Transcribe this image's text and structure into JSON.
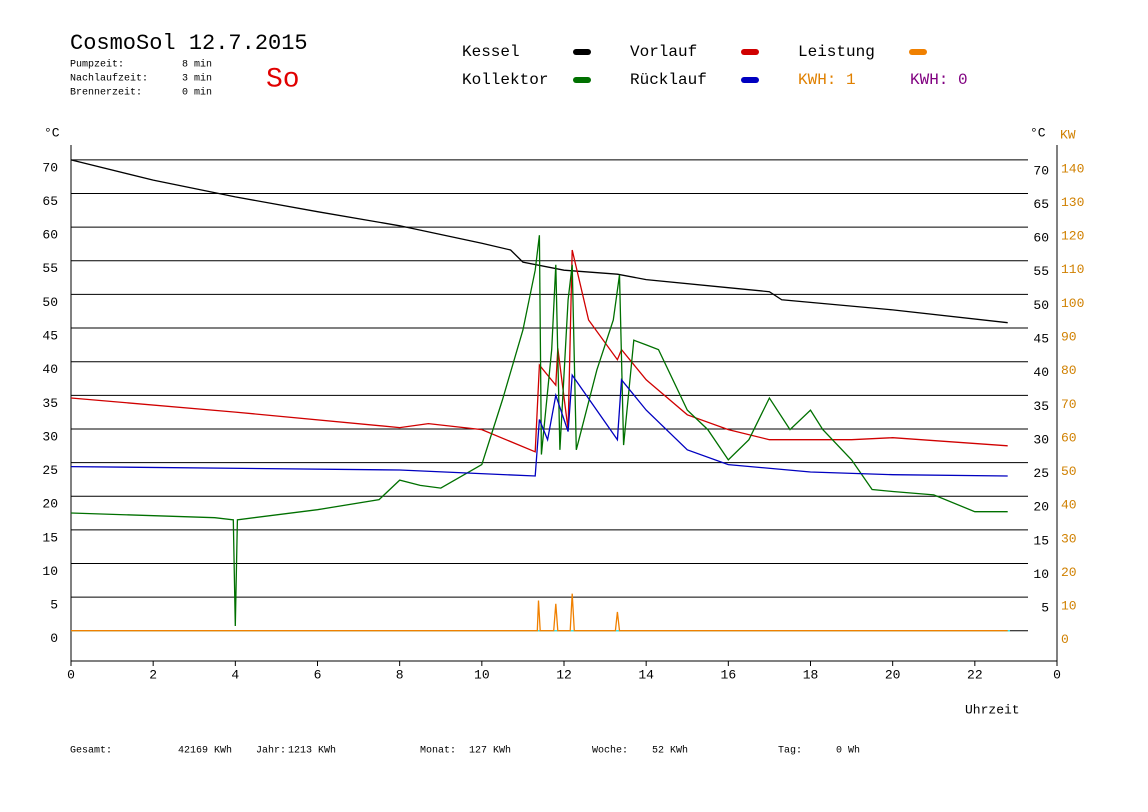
{
  "chart_data": {
    "type": "line",
    "title": "CosmoSol 12.7.2015",
    "day": "So",
    "info": [
      {
        "label": "Pumpzeit:",
        "value": "8 min"
      },
      {
        "label": "Nachlaufzeit:",
        "value": "3 min"
      },
      {
        "label": "Brennerzeit:",
        "value": "0 min"
      }
    ],
    "kwh": [
      {
        "label": "KWH: 1",
        "color": "#e08000"
      },
      {
        "label": "KWH: 0",
        "color": "#800080"
      }
    ],
    "y_label": "°C",
    "y2_label_c": "°C",
    "y2_label": "KW",
    "x_label": "Uhrzeit",
    "xlim": [
      0,
      24
    ],
    "xticks": [
      0,
      2,
      4,
      6,
      8,
      10,
      12,
      14,
      16,
      18,
      20,
      22,
      {
        "value": 24,
        "label": "0"
      }
    ],
    "ylim": [
      -4.5,
      74
    ],
    "yticks": [
      0,
      5,
      10,
      15,
      20,
      25,
      30,
      35,
      40,
      45,
      50,
      55,
      60,
      65,
      70
    ],
    "yticks_right": [
      5,
      10,
      15,
      20,
      25,
      30,
      35,
      40,
      45,
      50,
      55,
      60,
      65,
      70
    ],
    "y2lim": [
      -9,
      148
    ],
    "y2ticks": [
      0,
      10,
      20,
      30,
      40,
      50,
      60,
      70,
      80,
      90,
      100,
      110,
      120,
      130,
      140
    ],
    "grid": true,
    "series": [
      {
        "name": "Kessel",
        "color": "#000000",
        "x": [
          0,
          2,
          4,
          6,
          8,
          10,
          10.7,
          11,
          12,
          13.3,
          14,
          16,
          17,
          17.3,
          20,
          22.8
        ],
        "values": [
          70,
          67,
          64.5,
          62.3,
          60.2,
          57.6,
          56.6,
          54.8,
          53.6,
          53,
          52.2,
          51,
          50.4,
          49.2,
          47.7,
          45.8
        ]
      },
      {
        "name": "Vorlauf",
        "color": "#d00000",
        "x": [
          0,
          4,
          8,
          8.7,
          10,
          11.3,
          11.4,
          11.8,
          11.85,
          12.1,
          12.2,
          12.6,
          13.3,
          13.4,
          14,
          15,
          16,
          17,
          19,
          20,
          22.8
        ],
        "values": [
          34.6,
          32.5,
          30.2,
          30.8,
          29.9,
          26.6,
          39.5,
          36.5,
          42,
          29.9,
          56.6,
          46.2,
          40.3,
          41.8,
          37.3,
          32.1,
          29.9,
          28.4,
          28.4,
          28.7,
          27.5
        ]
      },
      {
        "name": "Leistung",
        "color": "#f08000",
        "axis": "y2",
        "x": [
          0,
          11.35,
          11.38,
          11.42,
          11.75,
          11.8,
          11.85,
          12.15,
          12.2,
          12.25,
          13.25,
          13.3,
          13.35,
          22.8
        ],
        "values": [
          0,
          0,
          9,
          0,
          0,
          8,
          0,
          0,
          11,
          0,
          0,
          5.6,
          0,
          0
        ]
      },
      {
        "name": "Kollektor",
        "color": "#007000",
        "x": [
          0,
          3.5,
          3.95,
          4.0,
          4.05,
          6,
          7.5,
          8,
          8.5,
          9,
          10,
          10.5,
          11,
          11.3,
          11.4,
          11.45,
          11.7,
          11.8,
          11.9,
          12.1,
          12.2,
          12.3,
          12.8,
          13.2,
          13.35,
          13.45,
          13.7,
          14,
          14.3,
          15,
          15.5,
          16,
          16.5,
          17,
          17.5,
          18,
          18.3,
          19,
          19.5,
          20,
          21,
          22,
          22.8
        ],
        "values": [
          17.5,
          16.8,
          16.5,
          0.7,
          16.5,
          18,
          19.5,
          22.4,
          21.6,
          21.2,
          24.7,
          34.3,
          44.7,
          53.6,
          58.8,
          26.2,
          41.8,
          54.4,
          26.9,
          49.2,
          54.4,
          26.9,
          38.8,
          46.2,
          52.9,
          27.6,
          43.2,
          42.5,
          41.8,
          32.8,
          29.9,
          25.4,
          28.4,
          34.6,
          29.9,
          32.8,
          29.9,
          25.4,
          21,
          20.7,
          20.2,
          17.7,
          17.7
        ]
      },
      {
        "name": "Rücklauf",
        "color": "#0000c0",
        "x": [
          0,
          8,
          11.3,
          11.4,
          11.6,
          11.8,
          12.1,
          12.2,
          13.3,
          13.4,
          14,
          15,
          16,
          18,
          20,
          22.8
        ],
        "values": [
          24.4,
          23.9,
          23,
          31.4,
          28.4,
          35,
          29.6,
          38,
          28.4,
          37.3,
          32.8,
          26.9,
          24.7,
          23.6,
          23.2,
          23
        ]
      }
    ],
    "totals": [
      {
        "label": "Gesamt:",
        "value": "42169 KWh"
      },
      {
        "label": "Jahr:",
        "value": "1213 KWh"
      },
      {
        "label": "Monat:",
        "value": "127 KWh"
      },
      {
        "label": "Woche:",
        "value": "52 KWh"
      },
      {
        "label": "Tag:",
        "value": "0 Wh"
      }
    ]
  }
}
